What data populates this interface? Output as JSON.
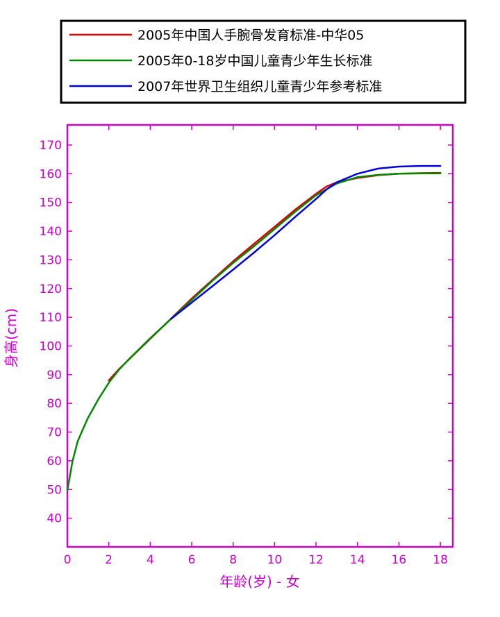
{
  "colors": {
    "axis": "#cc00cc",
    "legend_border": "#000000",
    "background": "#ffffff"
  },
  "chart_data": {
    "type": "line",
    "title": "",
    "xlabel": "年龄(岁) - 女",
    "ylabel": "身高(cm)",
    "xlim": [
      0,
      18.6
    ],
    "ylim": [
      30,
      177
    ],
    "x_ticks": [
      0,
      2,
      4,
      6,
      8,
      10,
      12,
      14,
      16,
      18
    ],
    "y_ticks": [
      40,
      50,
      60,
      70,
      80,
      90,
      100,
      110,
      120,
      130,
      140,
      150,
      160,
      170
    ],
    "grid": false,
    "legend_position": "above plot",
    "series": [
      {
        "name": "2005年中国人手腕骨发育标准-中华05",
        "color": "#dd0000",
        "x": [
          2,
          2.5,
          3,
          4,
          5,
          6,
          7,
          8,
          9,
          10,
          11,
          12,
          12.5,
          13,
          14,
          15,
          16,
          17,
          18
        ],
        "y": [
          88,
          92,
          95.5,
          102.5,
          109.5,
          116.5,
          123,
          129.5,
          135.5,
          141.5,
          147.5,
          153,
          155.5,
          157,
          158.5,
          159.5,
          160,
          160.2,
          160.3
        ]
      },
      {
        "name": "2005年0-18岁中国儿童青少年生长标准",
        "color": "#008800",
        "x": [
          0,
          0.25,
          0.5,
          0.75,
          1,
          1.5,
          2,
          2.5,
          3,
          4,
          5,
          6,
          7,
          8,
          9,
          10,
          11,
          12,
          13,
          14,
          15,
          16,
          17,
          18
        ],
        "y": [
          49.7,
          60,
          66.8,
          71,
          75,
          81.5,
          87.2,
          91.8,
          95.6,
          102.7,
          109.4,
          116,
          122.7,
          128.9,
          134.7,
          140.7,
          146.8,
          152.5,
          156.6,
          158.8,
          159.6,
          160,
          160.1,
          160.1
        ]
      },
      {
        "name": "2007年世界卫生组织儿童青少年参考标准",
        "color": "#0000dd",
        "x": [
          5,
          6,
          7,
          8,
          9,
          10,
          11,
          12,
          12.5,
          13,
          14,
          15,
          16,
          17,
          18
        ],
        "y": [
          109.4,
          115.1,
          120.8,
          126.6,
          132.5,
          138.6,
          145,
          151.2,
          154.5,
          157,
          160,
          161.8,
          162.5,
          162.7,
          162.7
        ]
      }
    ]
  }
}
